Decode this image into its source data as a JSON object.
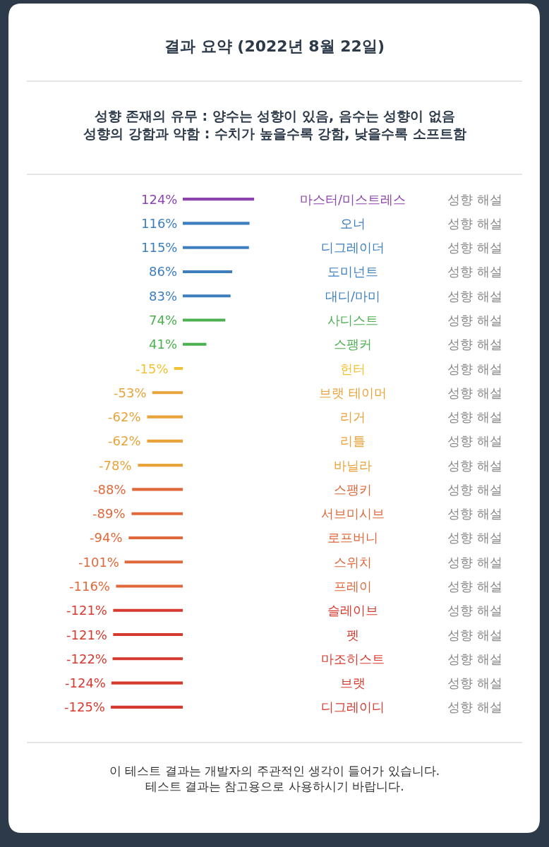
{
  "chart_data": {
    "type": "bar",
    "orientation": "horizontal",
    "title": "결과 요약 (2022년 8월 22일)",
    "subtitle": "성향 존재의 유무 : 양수는 성향이 있음, 음수는 성향이 없음\n성향의 강함과 약함 : 수치가 높을수록 강함, 낮을수록 소프트함",
    "categories": [
      "마스터/미스트레스",
      "오너",
      "디그레이더",
      "도미넌트",
      "대디/마미",
      "사디스트",
      "스팽커",
      "헌터",
      "브랫 테이머",
      "리거",
      "리틀",
      "바닐라",
      "스팽키",
      "서브미시브",
      "로프버니",
      "스위치",
      "프레이",
      "슬레이브",
      "펫",
      "마조히스트",
      "브랫",
      "디그레이디"
    ],
    "values": [
      124,
      116,
      115,
      86,
      83,
      74,
      41,
      -15,
      -53,
      -62,
      -62,
      -78,
      -88,
      -89,
      -94,
      -101,
      -116,
      -121,
      -121,
      -122,
      -124,
      -125
    ],
    "value_labels": [
      "124%",
      "116%",
      "115%",
      "86%",
      "83%",
      "74%",
      "41%",
      "-15%",
      "-53%",
      "-62%",
      "-62%",
      "-78%",
      "-88%",
      "-89%",
      "-94%",
      "-101%",
      "-116%",
      "-121%",
      "-121%",
      "-122%",
      "-124%",
      "-125%"
    ],
    "colors": [
      "#8e44ad",
      "#3d7ebf",
      "#3d7ebf",
      "#3d7ebf",
      "#3d7ebf",
      "#4caf50",
      "#4caf50",
      "#f1c232",
      "#e8a33a",
      "#e8a33a",
      "#e8a33a",
      "#e8a33a",
      "#e0683b",
      "#e0683b",
      "#e0683b",
      "#e0683b",
      "#e0683b",
      "#d63a2f",
      "#d63a2f",
      "#d63a2f",
      "#d63a2f",
      "#d63a2f"
    ],
    "annotations": [
      "성향 해설",
      "성향 해설",
      "성향 해설",
      "성향 해설",
      "성향 해설",
      "성향 해설",
      "성향 해설",
      "성향 해설",
      "성향 해설",
      "성향 해설",
      "성향 해설",
      "성향 해설",
      "성향 해설",
      "성향 해설",
      "성향 해설",
      "성향 해설",
      "성향 해설",
      "성향 해설",
      "성향 해설",
      "성향 해설",
      "성향 해설",
      "성향 해설",
      "이 테스트 결과는 개발자의 주관적인 생각이 들어가 있습니다.\n테스트 결과는 참고용으로 사용하시기 바랍니다."
    ],
    "legend": false
  }
}
